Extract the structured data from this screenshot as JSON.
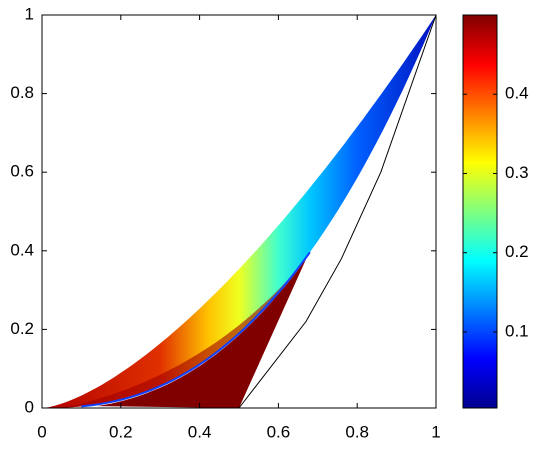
{
  "chart_data": {
    "type": "surface",
    "xlim": [
      0,
      1
    ],
    "ylim": [
      0,
      1
    ],
    "xticks": [
      0,
      0.2,
      0.4,
      0.6,
      0.8,
      1
    ],
    "yticks": [
      0,
      0.2,
      0.4,
      0.6,
      0.8,
      1
    ],
    "colorbar": {
      "colormap": "jet",
      "lim": [
        0.004,
        0.5
      ],
      "ticks": [
        0.1,
        0.2,
        0.3,
        0.4
      ]
    }
  }
}
